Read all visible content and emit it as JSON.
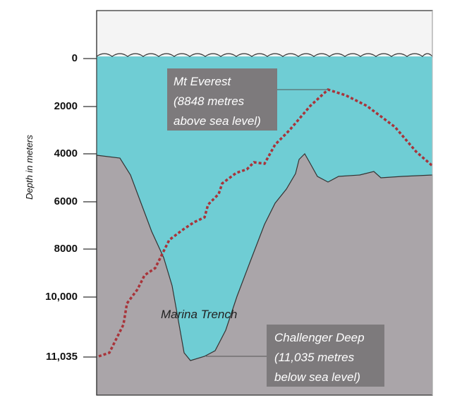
{
  "axis_label": "Depth in meters",
  "ticks": [
    "0",
    "2000",
    "4000",
    "6000",
    "8000",
    "10,000",
    "11,035"
  ],
  "everest": {
    "lines": [
      "Mt Everest",
      "(8848 metres",
      "above sea level)"
    ]
  },
  "trench_label": "Marina Trench",
  "challenger": {
    "lines": [
      "Challenger Deep",
      "(11,035 metres",
      "below sea level)"
    ]
  }
}
